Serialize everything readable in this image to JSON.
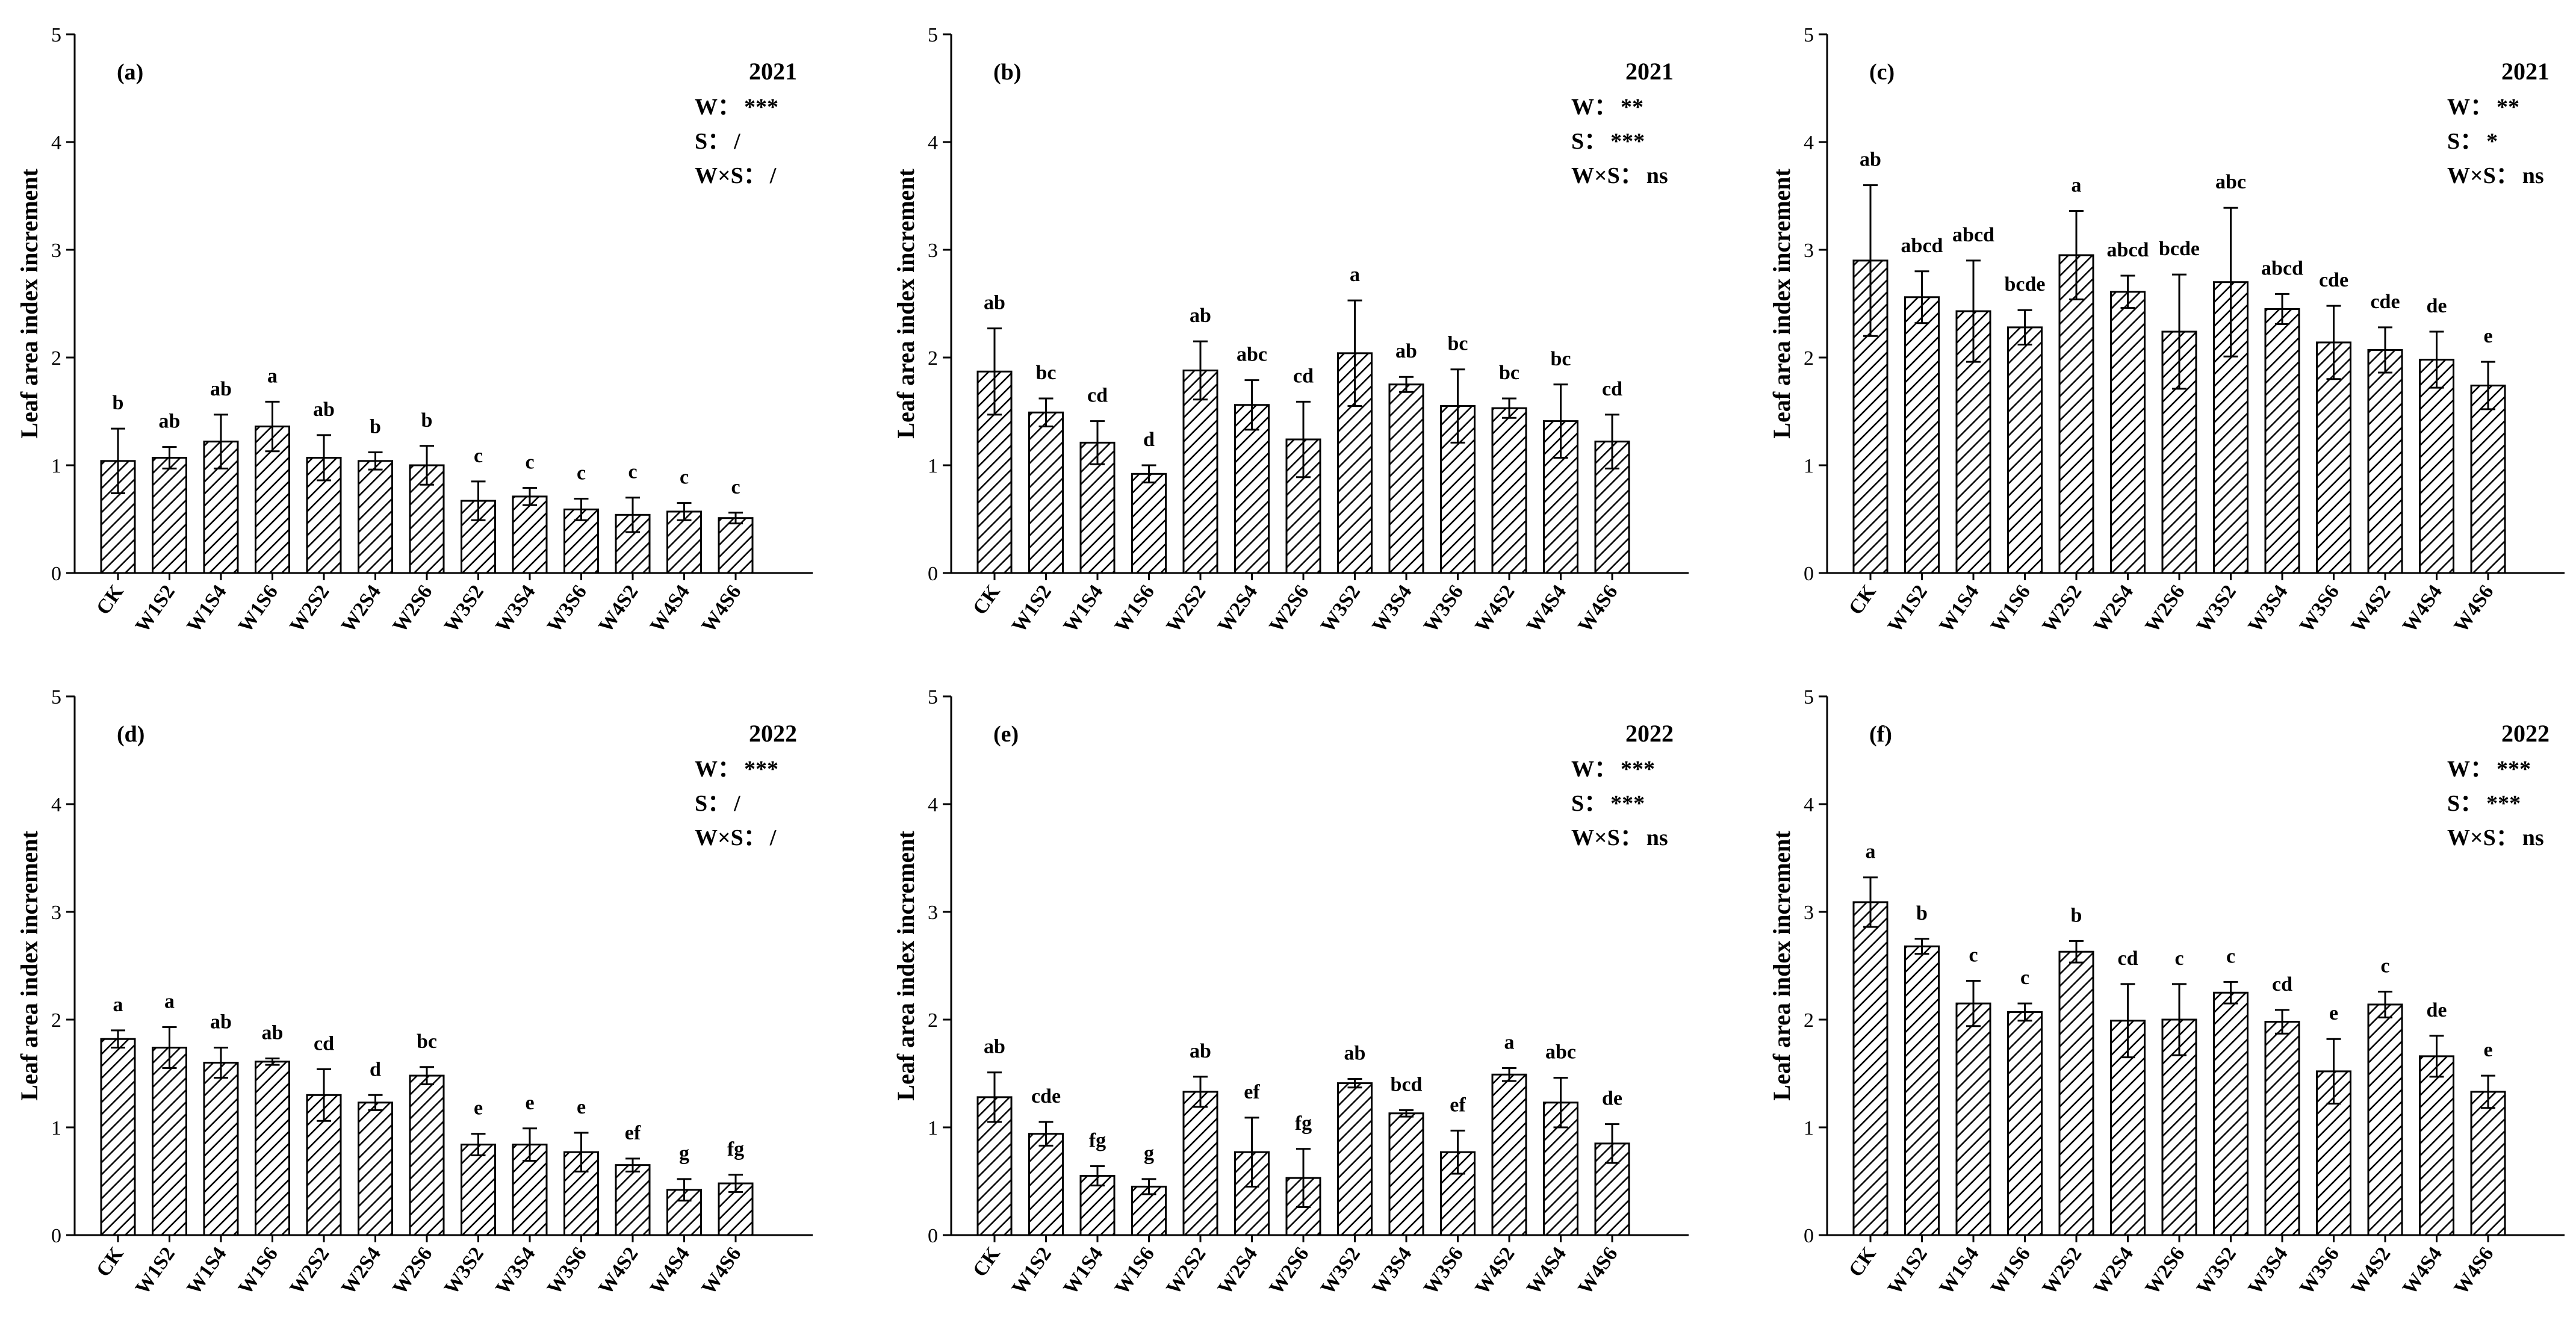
{
  "chart_data": [
    {
      "panel": "(a)",
      "year": "2021",
      "type": "bar",
      "ylabel": "Leaf area index increment",
      "ylim": [
        0,
        5
      ],
      "yticks": [
        "0",
        "1",
        "2",
        "3",
        "4",
        "5"
      ],
      "categories": [
        "CK",
        "W1S2",
        "W1S4",
        "W1S6",
        "W2S2",
        "W2S4",
        "W2S6",
        "W3S2",
        "W3S4",
        "W3S6",
        "W4S2",
        "W4S4",
        "W4S6"
      ],
      "values": [
        1.04,
        1.07,
        1.22,
        1.36,
        1.07,
        1.04,
        1.0,
        0.67,
        0.71,
        0.59,
        0.54,
        0.57,
        0.51
      ],
      "errors": [
        0.3,
        0.1,
        0.25,
        0.23,
        0.21,
        0.08,
        0.18,
        0.18,
        0.08,
        0.1,
        0.16,
        0.08,
        0.05
      ],
      "letters": [
        "b",
        "ab",
        "ab",
        "a",
        "ab",
        "b",
        "b",
        "c",
        "c",
        "c",
        "c",
        "c",
        "c"
      ],
      "stats": [
        {
          "label": "W：",
          "value": "***"
        },
        {
          "label": "S：",
          "value": "/"
        },
        {
          "label": "W×S：",
          "value": "/"
        }
      ]
    },
    {
      "panel": "(b)",
      "year": "2021",
      "type": "bar",
      "ylabel": "Leaf area index increment",
      "ylim": [
        0,
        5
      ],
      "yticks": [
        "0",
        "1",
        "2",
        "3",
        "4",
        "5"
      ],
      "categories": [
        "CK",
        "W1S2",
        "W1S4",
        "W1S6",
        "W2S2",
        "W2S4",
        "W2S6",
        "W3S2",
        "W3S4",
        "W3S6",
        "W4S2",
        "W4S4",
        "W4S6"
      ],
      "values": [
        1.87,
        1.49,
        1.21,
        0.92,
        1.88,
        1.56,
        1.24,
        2.04,
        1.75,
        1.55,
        1.53,
        1.41,
        1.22
      ],
      "errors": [
        0.4,
        0.13,
        0.2,
        0.08,
        0.27,
        0.23,
        0.35,
        0.49,
        0.07,
        0.34,
        0.09,
        0.34,
        0.25
      ],
      "letters": [
        "ab",
        "bc",
        "cd",
        "d",
        "ab",
        "abc",
        "cd",
        "a",
        "ab",
        "bc",
        "bc",
        "bc",
        "cd"
      ],
      "stats": [
        {
          "label": "W：",
          "value": "**"
        },
        {
          "label": "S：",
          "value": "***"
        },
        {
          "label": "W×S：",
          "value": "ns"
        }
      ]
    },
    {
      "panel": "(c)",
      "year": "2021",
      "type": "bar",
      "ylabel": "Leaf area index increment",
      "ylim": [
        0,
        5
      ],
      "yticks": [
        "0",
        "1",
        "2",
        "3",
        "4",
        "5"
      ],
      "categories": [
        "CK",
        "W1S2",
        "W1S4",
        "W1S6",
        "W2S2",
        "W2S4",
        "W2S6",
        "W3S2",
        "W3S4",
        "W3S6",
        "W4S2",
        "W4S4",
        "W4S6"
      ],
      "values": [
        2.9,
        2.56,
        2.43,
        2.28,
        2.95,
        2.61,
        2.24,
        2.7,
        2.45,
        2.14,
        2.07,
        1.98,
        1.74
      ],
      "errors": [
        0.7,
        0.24,
        0.47,
        0.16,
        0.41,
        0.15,
        0.53,
        0.69,
        0.14,
        0.34,
        0.21,
        0.26,
        0.22
      ],
      "letters": [
        "ab",
        "abcd",
        "abcd",
        "bcde",
        "a",
        "abcd",
        "bcde",
        "abc",
        "abcd",
        "cde",
        "cde",
        "de",
        "e"
      ],
      "stats": [
        {
          "label": "W：",
          "value": "**"
        },
        {
          "label": "S：",
          "value": "*"
        },
        {
          "label": "W×S：",
          "value": "ns"
        }
      ]
    },
    {
      "panel": "(d)",
      "year": "2022",
      "type": "bar",
      "ylabel": "Leaf area index increment",
      "ylim": [
        0,
        5
      ],
      "yticks": [
        "0",
        "1",
        "2",
        "3",
        "4",
        "5"
      ],
      "categories": [
        "CK",
        "W1S2",
        "W1S4",
        "W1S6",
        "W2S2",
        "W2S4",
        "W2S6",
        "W3S2",
        "W3S4",
        "W3S6",
        "W4S2",
        "W4S4",
        "W4S6"
      ],
      "values": [
        1.82,
        1.74,
        1.6,
        1.61,
        1.3,
        1.23,
        1.48,
        0.84,
        0.84,
        0.77,
        0.65,
        0.42,
        0.48
      ],
      "errors": [
        0.08,
        0.19,
        0.14,
        0.03,
        0.24,
        0.07,
        0.08,
        0.1,
        0.15,
        0.18,
        0.06,
        0.1,
        0.08
      ],
      "letters": [
        "a",
        "a",
        "ab",
        "ab",
        "cd",
        "d",
        "bc",
        "e",
        "e",
        "e",
        "ef",
        "g",
        "fg"
      ],
      "stats": [
        {
          "label": "W：",
          "value": "***"
        },
        {
          "label": "S：",
          "value": "/"
        },
        {
          "label": "W×S：",
          "value": "/"
        }
      ]
    },
    {
      "panel": "(e)",
      "year": "2022",
      "type": "bar",
      "ylabel": "Leaf area index increment",
      "ylim": [
        0,
        5
      ],
      "yticks": [
        "0",
        "1",
        "2",
        "3",
        "4",
        "5"
      ],
      "categories": [
        "CK",
        "W1S2",
        "W1S4",
        "W1S6",
        "W2S2",
        "W2S4",
        "W2S6",
        "W3S2",
        "W3S4",
        "W3S6",
        "W4S2",
        "W4S4",
        "W4S6"
      ],
      "values": [
        1.28,
        0.94,
        0.55,
        0.45,
        1.33,
        0.77,
        0.53,
        1.41,
        1.13,
        0.77,
        1.49,
        1.23,
        0.85
      ],
      "errors": [
        0.23,
        0.11,
        0.09,
        0.07,
        0.14,
        0.32,
        0.27,
        0.04,
        0.03,
        0.2,
        0.06,
        0.23,
        0.18
      ],
      "letters": [
        "ab",
        "cde",
        "fg",
        "g",
        "ab",
        "ef",
        "fg",
        "ab",
        "bcd",
        "ef",
        "a",
        "abc",
        "de"
      ],
      "stats": [
        {
          "label": "W：",
          "value": "***"
        },
        {
          "label": "S：",
          "value": "***"
        },
        {
          "label": "W×S：",
          "value": "ns"
        }
      ]
    },
    {
      "panel": "(f)",
      "year": "2022",
      "type": "bar",
      "ylabel": "Leaf area index increment",
      "ylim": [
        0,
        5
      ],
      "yticks": [
        "0",
        "1",
        "2",
        "3",
        "4",
        "5"
      ],
      "categories": [
        "CK",
        "W1S2",
        "W1S4",
        "W1S6",
        "W2S2",
        "W2S4",
        "W2S6",
        "W3S2",
        "W3S4",
        "W3S6",
        "W4S2",
        "W4S4",
        "W4S6"
      ],
      "values": [
        3.09,
        2.68,
        2.15,
        2.07,
        2.63,
        1.99,
        2.0,
        2.25,
        1.98,
        1.52,
        2.14,
        1.66,
        1.33
      ],
      "errors": [
        0.23,
        0.07,
        0.21,
        0.08,
        0.1,
        0.34,
        0.33,
        0.1,
        0.11,
        0.3,
        0.12,
        0.19,
        0.15
      ],
      "letters": [
        "a",
        "b",
        "c",
        "c",
        "b",
        "cd",
        "c",
        "c",
        "cd",
        "e",
        "c",
        "de",
        "e"
      ],
      "stats": [
        {
          "label": "W：",
          "value": "***"
        },
        {
          "label": "S：",
          "value": "***"
        },
        {
          "label": "W×S：",
          "value": "ns"
        }
      ]
    }
  ]
}
